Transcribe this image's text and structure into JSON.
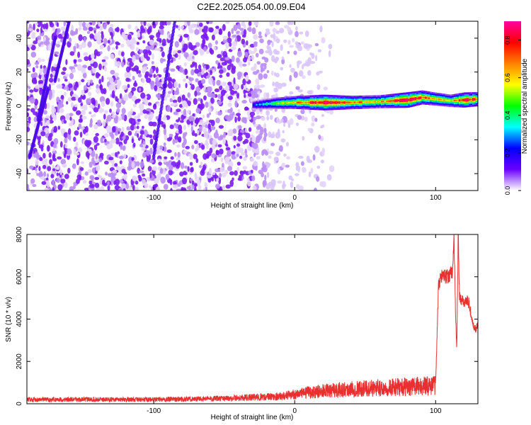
{
  "title": "C2E2.2025.054.00.09.E04",
  "chart_data": [
    {
      "type": "heatmap",
      "xlabel": "Height of straight line (km)",
      "ylabel": "Frequency (Hz)",
      "xlim": [
        -190,
        130
      ],
      "ylim": [
        -50,
        50
      ],
      "xticks": [
        -100,
        0,
        100
      ],
      "yticks": [
        -40,
        -20,
        0,
        20,
        40
      ],
      "colorbar": {
        "label": "Normalized spectral amplitude",
        "range": [
          0.0,
          0.9
        ],
        "ticks": [
          0.0,
          0.2,
          0.4,
          0.6,
          0.8
        ],
        "colors": [
          "#ffffff",
          "#6a00ff",
          "#0000ff",
          "#00ffff",
          "#00ff00",
          "#ffff00",
          "#ff8000",
          "#ff0000",
          "#ff00a0"
        ]
      },
      "features": {
        "noise_region_x": [
          -190,
          5
        ],
        "signal_band": [
          {
            "x": -30,
            "freq": 0.5,
            "amp": 0.25
          },
          {
            "x": -15,
            "freq": 1.5,
            "amp": 0.45
          },
          {
            "x": 0,
            "freq": 2,
            "amp": 0.6
          },
          {
            "x": 20,
            "freq": 2,
            "amp": 0.85
          },
          {
            "x": 40,
            "freq": 2,
            "amp": 0.65
          },
          {
            "x": 60,
            "freq": 2.5,
            "amp": 0.6
          },
          {
            "x": 80,
            "freq": 3.5,
            "amp": 0.85
          },
          {
            "x": 90,
            "freq": 5,
            "amp": 0.7
          },
          {
            "x": 100,
            "freq": 4,
            "amp": 0.6
          },
          {
            "x": 110,
            "freq": 3,
            "amp": 0.55
          },
          {
            "x": 120,
            "freq": 3.5,
            "amp": 0.8
          },
          {
            "x": 130,
            "freq": 4,
            "amp": 0.7
          }
        ]
      }
    },
    {
      "type": "line",
      "xlabel": "Height of straight line (km)",
      "ylabel": "SNR (10 * v/v)",
      "xlim": [
        -190,
        130
      ],
      "ylim": [
        0,
        8000
      ],
      "xticks": [
        -100,
        0,
        100
      ],
      "yticks": [
        0,
        2000,
        4000,
        6000,
        8000
      ],
      "color": "#e83030",
      "series": [
        {
          "x": [
            -190,
            -150,
            -100,
            -50,
            -10,
            0,
            20,
            40,
            60,
            80,
            95,
            100,
            102,
            104,
            108,
            112,
            113,
            114,
            115,
            116,
            117,
            118,
            120,
            122,
            124,
            126,
            128,
            130
          ],
          "y": [
            200,
            200,
            200,
            250,
            350,
            450,
            600,
            700,
            750,
            800,
            850,
            900,
            5500,
            6100,
            6000,
            6200,
            8000,
            4600,
            2500,
            7900,
            5000,
            4900,
            4800,
            4900,
            4700,
            3800,
            3500,
            3700
          ]
        }
      ]
    }
  ]
}
